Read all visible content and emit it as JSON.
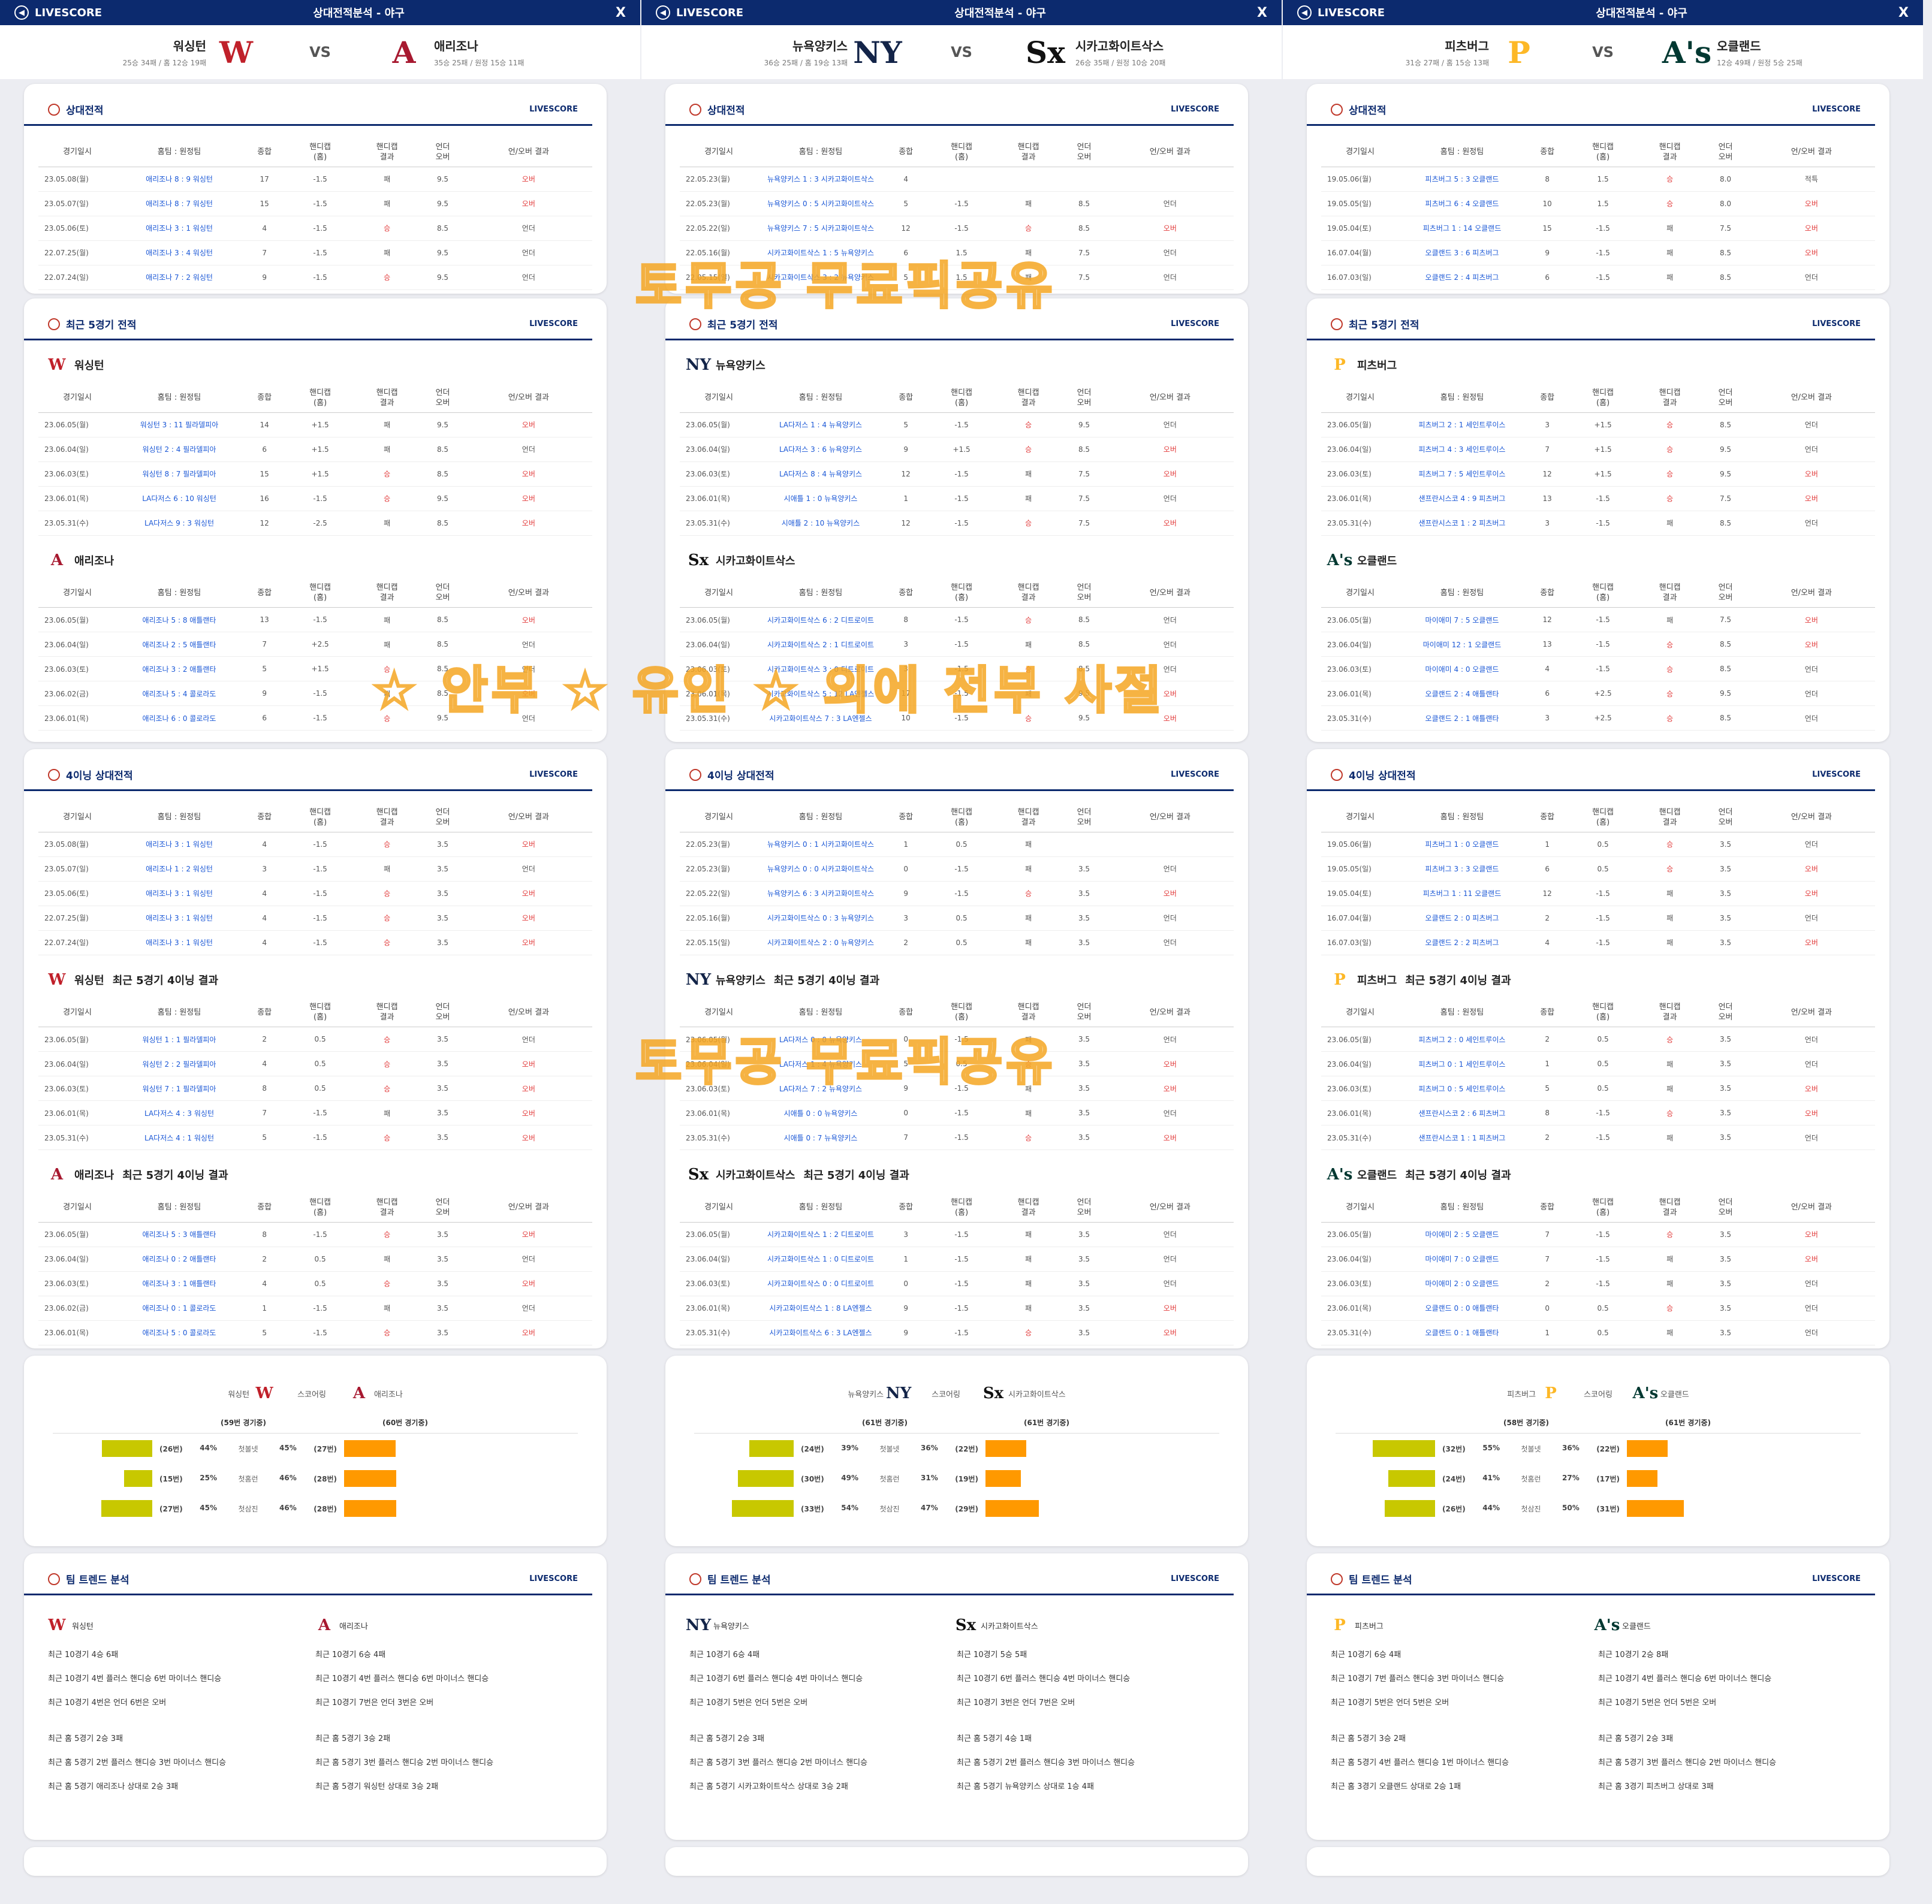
{
  "header": {
    "brand": "LIVESCORE",
    "title": "상대전적분석 - 야구",
    "close": "X"
  },
  "labels": {
    "vs": "VS",
    "h2h": "상대전적",
    "recent5": "최근 5경기 전적",
    "inning4": "4이닝 상대전적",
    "inning4suffix": " 최근 5경기 4이닝 결과",
    "trend": "팀 트렌드 분석",
    "livescore": "LIVESCORE",
    "scoring": "스코어링",
    "cols": [
      "경기일시",
      "홈팀 : 원정팀",
      "종합",
      "핸디캡\n(홈)",
      "핸디캡\n결과",
      "언더\n오버",
      "언/오버 결과"
    ],
    "stat_labels": [
      "첫볼넷",
      "첫홈런",
      "첫삼진"
    ]
  },
  "watermarks": [
    "토무공 무료픽공유",
    "☆ 안부 ☆ 유인 ☆ 외에 전부 사절",
    "토무공 무료픽공유"
  ],
  "games": [
    {
      "home": {
        "name": "워싱턴",
        "rec": "25승 34패 / 홈 12승 19패",
        "logo": "W",
        "color": "#c0202a"
      },
      "away": {
        "name": "애리조나",
        "rec": "35승 25패 / 원정 15승 11패",
        "logo": "A",
        "color": "#a71930"
      },
      "h2h": [
        [
          "23.05.08(월)",
          "애리조나 8 : 9 워싱턴",
          "17",
          "-1.5",
          "패",
          "9.5",
          "오버"
        ],
        [
          "23.05.07(일)",
          "애리조나 8 : 7 워싱턴",
          "15",
          "-1.5",
          "패",
          "9.5",
          "오버"
        ],
        [
          "23.05.06(토)",
          "애리조나 3 : 1 워싱턴",
          "4",
          "-1.5",
          "승",
          "8.5",
          "언더"
        ],
        [
          "22.07.25(월)",
          "애리조나 3 : 4 워싱턴",
          "7",
          "-1.5",
          "패",
          "9.5",
          "언더"
        ],
        [
          "22.07.24(일)",
          "애리조나 7 : 2 워싱턴",
          "9",
          "-1.5",
          "승",
          "9.5",
          "언더"
        ]
      ],
      "recent_home": [
        [
          "23.06.05(월)",
          "워싱턴 3 : 11 필라델피아",
          "14",
          "+1.5",
          "패",
          "9.5",
          "오버"
        ],
        [
          "23.06.04(일)",
          "워싱턴 2 : 4 필라델피아",
          "6",
          "+1.5",
          "패",
          "8.5",
          "언더"
        ],
        [
          "23.06.03(토)",
          "워싱턴 8 : 7 필라델피아",
          "15",
          "+1.5",
          "승",
          "8.5",
          "오버"
        ],
        [
          "23.06.01(목)",
          "LA다저스 6 : 10 워싱턴",
          "16",
          "-1.5",
          "승",
          "9.5",
          "오버"
        ],
        [
          "23.05.31(수)",
          "LA다저스 9 : 3 워싱턴",
          "12",
          "-2.5",
          "패",
          "8.5",
          "오버"
        ]
      ],
      "recent_away": [
        [
          "23.06.05(월)",
          "애리조나 5 : 8 애틀랜타",
          "13",
          "-1.5",
          "패",
          "8.5",
          "오버"
        ],
        [
          "23.06.04(일)",
          "애리조나 2 : 5 애틀랜타",
          "7",
          "+2.5",
          "패",
          "8.5",
          "언더"
        ],
        [
          "23.06.03(토)",
          "애리조나 3 : 2 애틀랜타",
          "5",
          "+1.5",
          "승",
          "8.5",
          "언더"
        ],
        [
          "23.06.02(금)",
          "애리조나 5 : 4 콜로라도",
          "9",
          "-1.5",
          "패",
          "8.5",
          "오버"
        ],
        [
          "23.06.01(목)",
          "애리조나 6 : 0 콜로라도",
          "6",
          "-1.5",
          "승",
          "9.5",
          "언더"
        ]
      ],
      "i4": [
        [
          "23.05.08(월)",
          "애리조나 3 : 1 워싱턴",
          "4",
          "-1.5",
          "승",
          "3.5",
          "오버"
        ],
        [
          "23.05.07(일)",
          "애리조나 1 : 2 워싱턴",
          "3",
          "-1.5",
          "패",
          "3.5",
          "언더"
        ],
        [
          "23.05.06(토)",
          "애리조나 3 : 1 워싱턴",
          "4",
          "-1.5",
          "승",
          "3.5",
          "오버"
        ],
        [
          "22.07.25(월)",
          "애리조나 3 : 1 워싱턴",
          "4",
          "-1.5",
          "승",
          "3.5",
          "오버"
        ],
        [
          "22.07.24(일)",
          "애리조나 3 : 1 워싱턴",
          "4",
          "-1.5",
          "승",
          "3.5",
          "오버"
        ]
      ],
      "i4_home": [
        [
          "23.06.05(월)",
          "워싱턴 1 : 1 필라델피아",
          "2",
          "0.5",
          "승",
          "3.5",
          "언더"
        ],
        [
          "23.06.04(일)",
          "워싱턴 2 : 2 필라델피아",
          "4",
          "0.5",
          "승",
          "3.5",
          "오버"
        ],
        [
          "23.06.03(토)",
          "워싱턴 7 : 1 필라델피아",
          "8",
          "0.5",
          "승",
          "3.5",
          "오버"
        ],
        [
          "23.06.01(목)",
          "LA다저스 4 : 3 워싱턴",
          "7",
          "-1.5",
          "패",
          "3.5",
          "오버"
        ],
        [
          "23.05.31(수)",
          "LA다저스 4 : 1 워싱턴",
          "5",
          "-1.5",
          "승",
          "3.5",
          "오버"
        ]
      ],
      "i4_away": [
        [
          "23.06.05(월)",
          "애리조나 5 : 3 애틀랜타",
          "8",
          "-1.5",
          "승",
          "3.5",
          "오버"
        ],
        [
          "23.06.04(일)",
          "애리조나 0 : 2 애틀랜타",
          "2",
          "0.5",
          "패",
          "3.5",
          "언더"
        ],
        [
          "23.06.03(토)",
          "애리조나 3 : 1 애틀랜타",
          "4",
          "0.5",
          "승",
          "3.5",
          "오버"
        ],
        [
          "23.06.02(금)",
          "애리조나 0 : 1 콜로라도",
          "1",
          "-1.5",
          "패",
          "3.5",
          "언더"
        ],
        [
          "23.06.01(목)",
          "애리조나 5 : 0 콜로라도",
          "5",
          "-1.5",
          "승",
          "3.5",
          "오버"
        ]
      ],
      "stats": {
        "home_games": "(59번 경기중)",
        "away_games": "(60번 경기중)",
        "rows": [
          [
            "(26번)",
            "44%",
            "45%",
            "(27번)",
            0.44,
            0.45
          ],
          [
            "(15번)",
            "25%",
            "46%",
            "(28번)",
            0.25,
            0.46
          ],
          [
            "(27번)",
            "45%",
            "46%",
            "(28번)",
            0.45,
            0.46
          ]
        ]
      },
      "trend_home": [
        "최근 10경기 4승 6패",
        "최근 10경기 4번 플러스 핸디승 6번 마이너스 핸디승",
        "최근 10경기 4번은 언더 6번은 오버",
        "최근 홈 5경기 2승 3패",
        "최근 홈 5경기 2번 플러스 핸디승 3번 마이너스 핸디승",
        "최근 홈 5경기 애리조나 상대로 2승 3패"
      ],
      "trend_away": [
        "최근 10경기 6승 4패",
        "최근 10경기 4번 플러스 핸디승 6번 마이너스 핸디승",
        "최근 10경기 7번은 언더 3번은 오버",
        "최근 홈 5경기 3승 2패",
        "최근 홈 5경기 3번 플러스 핸디승 2번 마이너스 핸디승",
        "최근 홈 5경기 워싱턴 상대로 3승 2패"
      ]
    },
    {
      "home": {
        "name": "뉴욕양키스",
        "rec": "36승 25패 / 홈 19승 13패",
        "logo": "NY",
        "color": "#132448"
      },
      "away": {
        "name": "시카고화이트삭스",
        "rec": "26승 35패 / 원정 10승 20패",
        "logo": "Sx",
        "color": "#111111"
      },
      "h2h": [
        [
          "22.05.23(월)",
          "뉴욕양키스 1 : 3 시카고화이트삭스",
          "4",
          "",
          "",
          "",
          ""
        ],
        [
          "22.05.23(월)",
          "뉴욕양키스 0 : 5 시카고화이트삭스",
          "5",
          "-1.5",
          "패",
          "8.5",
          "언더"
        ],
        [
          "22.05.22(일)",
          "뉴욕양키스 7 : 5 시카고화이트삭스",
          "12",
          "-1.5",
          "승",
          "8.5",
          "오버"
        ],
        [
          "22.05.16(월)",
          "시카고화이트삭스 1 : 5 뉴욕양키스",
          "6",
          "1.5",
          "패",
          "7.5",
          "언더"
        ],
        [
          "22.05.15(일)",
          "시카고화이트삭스 3 : 2 뉴욕양키스",
          "5",
          "1.5",
          "패",
          "7.5",
          "언더"
        ]
      ],
      "recent_home": [
        [
          "23.06.05(월)",
          "LA다저스 1 : 4 뉴욕양키스",
          "5",
          "-1.5",
          "승",
          "9.5",
          "언더"
        ],
        [
          "23.06.04(일)",
          "LA다저스 3 : 6 뉴욕양키스",
          "9",
          "+1.5",
          "승",
          "8.5",
          "오버"
        ],
        [
          "23.06.03(토)",
          "LA다저스 8 : 4 뉴욕양키스",
          "12",
          "-1.5",
          "패",
          "7.5",
          "오버"
        ],
        [
          "23.06.01(목)",
          "시애틀 1 : 0 뉴욕양키스",
          "1",
          "-1.5",
          "패",
          "7.5",
          "언더"
        ],
        [
          "23.05.31(수)",
          "시애틀 2 : 10 뉴욕양키스",
          "12",
          "-1.5",
          "승",
          "7.5",
          "오버"
        ]
      ],
      "recent_away": [
        [
          "23.06.05(월)",
          "시카고화이트삭스 6 : 2 디트로이트",
          "8",
          "-1.5",
          "승",
          "8.5",
          "언더"
        ],
        [
          "23.06.04(일)",
          "시카고화이트삭스 2 : 1 디트로이트",
          "3",
          "-1.5",
          "패",
          "8.5",
          "언더"
        ],
        [
          "23.06.03(토)",
          "시카고화이트삭스 3 : 0 디트로이트",
          "3",
          "-1.5",
          "승",
          "8.5",
          "언더"
        ],
        [
          "23.06.01(목)",
          "시카고화이트삭스 5 : 12 LA엔젤스",
          "17",
          "-1.5",
          "패",
          "9.5",
          "오버"
        ],
        [
          "23.05.31(수)",
          "시카고화이트삭스 7 : 3 LA엔젤스",
          "10",
          "-1.5",
          "승",
          "9.5",
          "오버"
        ]
      ],
      "i4": [
        [
          "22.05.23(월)",
          "뉴욕양키스 0 : 1 시카고화이트삭스",
          "1",
          "0.5",
          "패",
          "",
          ""
        ],
        [
          "22.05.23(월)",
          "뉴욕양키스 0 : 0 시카고화이트삭스",
          "0",
          "-1.5",
          "패",
          "3.5",
          "언더"
        ],
        [
          "22.05.22(일)",
          "뉴욕양키스 6 : 3 시카고화이트삭스",
          "9",
          "-1.5",
          "승",
          "3.5",
          "오버"
        ],
        [
          "22.05.16(월)",
          "시카고화이트삭스 0 : 3 뉴욕양키스",
          "3",
          "0.5",
          "패",
          "3.5",
          "언더"
        ],
        [
          "22.05.15(일)",
          "시카고화이트삭스 2 : 0 뉴욕양키스",
          "2",
          "0.5",
          "패",
          "3.5",
          "언더"
        ]
      ],
      "i4_home": [
        [
          "23.06.05(월)",
          "LA다저스 0 : 0 뉴욕양키스",
          "0",
          "-1.5",
          "패",
          "3.5",
          "언더"
        ],
        [
          "23.06.04(일)",
          "LA다저스 1 : 4 뉴욕양키스",
          "5",
          "0.5",
          "승",
          "3.5",
          "오버"
        ],
        [
          "23.06.03(토)",
          "LA다저스 7 : 2 뉴욕양키스",
          "9",
          "-1.5",
          "패",
          "3.5",
          "오버"
        ],
        [
          "23.06.01(목)",
          "시애틀 0 : 0 뉴욕양키스",
          "0",
          "-1.5",
          "패",
          "3.5",
          "언더"
        ],
        [
          "23.05.31(수)",
          "시애틀 0 : 7 뉴욕양키스",
          "7",
          "-1.5",
          "승",
          "3.5",
          "오버"
        ]
      ],
      "i4_away": [
        [
          "23.06.05(월)",
          "시카고화이트삭스 1 : 2 디트로이트",
          "3",
          "-1.5",
          "패",
          "3.5",
          "언더"
        ],
        [
          "23.06.04(일)",
          "시카고화이트삭스 1 : 0 디트로이트",
          "1",
          "-1.5",
          "패",
          "3.5",
          "언더"
        ],
        [
          "23.06.03(토)",
          "시카고화이트삭스 0 : 0 디트로이트",
          "0",
          "-1.5",
          "패",
          "3.5",
          "언더"
        ],
        [
          "23.06.01(목)",
          "시카고화이트삭스 1 : 8 LA엔젤스",
          "9",
          "-1.5",
          "패",
          "3.5",
          "오버"
        ],
        [
          "23.05.31(수)",
          "시카고화이트삭스 6 : 3 LA엔젤스",
          "9",
          "-1.5",
          "승",
          "3.5",
          "오버"
        ]
      ],
      "stats": {
        "home_games": "(61번 경기중)",
        "away_games": "(61번 경기중)",
        "rows": [
          [
            "(24번)",
            "39%",
            "36%",
            "(22번)",
            0.39,
            0.36
          ],
          [
            "(30번)",
            "49%",
            "31%",
            "(19번)",
            0.49,
            0.31
          ],
          [
            "(33번)",
            "54%",
            "47%",
            "(29번)",
            0.54,
            0.47
          ]
        ]
      },
      "trend_home": [
        "최근 10경기 6승 4패",
        "최근 10경기 6번 플러스 핸디승 4번 마이너스 핸디승",
        "최근 10경기 5번은 언더 5번은 오버",
        "최근 홈 5경기 2승 3패",
        "최근 홈 5경기 3번 플러스 핸디승 2번 마이너스 핸디승",
        "최근 홈 5경기 시카고화이트삭스 상대로 3승 2패"
      ],
      "trend_away": [
        "최근 10경기 5승 5패",
        "최근 10경기 6번 플러스 핸디승 4번 마이너스 핸디승",
        "최근 10경기 3번은 언더 7번은 오버",
        "최근 홈 5경기 4승 1패",
        "최근 홈 5경기 2번 플러스 핸디승 3번 마이너스 핸디승",
        "최근 홈 5경기 뉴욕양키스 상대로 1승 4패"
      ]
    },
    {
      "home": {
        "name": "피츠버그",
        "rec": "31승 27패 / 홈 15승 13패",
        "logo": "P",
        "color": "#fdb827"
      },
      "away": {
        "name": "오클랜드",
        "rec": "12승 49패 / 원정 5승 25패",
        "logo": "A's",
        "color": "#003831"
      },
      "h2h": [
        [
          "19.05.06(월)",
          "피츠버그 5 : 3 오클랜드",
          "8",
          "1.5",
          "승",
          "8.0",
          "적특"
        ],
        [
          "19.05.05(일)",
          "피츠버그 6 : 4 오클랜드",
          "10",
          "1.5",
          "승",
          "8.0",
          "오버"
        ],
        [
          "19.05.04(토)",
          "피츠버그 1 : 14 오클랜드",
          "15",
          "-1.5",
          "패",
          "7.5",
          "오버"
        ],
        [
          "16.07.04(월)",
          "오클랜드 3 : 6 피츠버그",
          "9",
          "-1.5",
          "패",
          "8.5",
          "오버"
        ],
        [
          "16.07.03(일)",
          "오클랜드 2 : 4 피츠버그",
          "6",
          "-1.5",
          "패",
          "8.5",
          "언더"
        ]
      ],
      "recent_home": [
        [
          "23.06.05(월)",
          "피츠버그 2 : 1 세인트루이스",
          "3",
          "+1.5",
          "승",
          "8.5",
          "언더"
        ],
        [
          "23.06.04(일)",
          "피츠버그 4 : 3 세인트루이스",
          "7",
          "+1.5",
          "승",
          "9.5",
          "언더"
        ],
        [
          "23.06.03(토)",
          "피츠버그 7 : 5 세인트루이스",
          "12",
          "+1.5",
          "승",
          "9.5",
          "오버"
        ],
        [
          "23.06.01(목)",
          "샌프란시스코 4 : 9 피츠버그",
          "13",
          "-1.5",
          "승",
          "7.5",
          "오버"
        ],
        [
          "23.05.31(수)",
          "샌프란시스코 1 : 2 피츠버그",
          "3",
          "-1.5",
          "패",
          "8.5",
          "언더"
        ]
      ],
      "recent_away": [
        [
          "23.06.05(월)",
          "마이애미 7 : 5 오클랜드",
          "12",
          "-1.5",
          "패",
          "7.5",
          "오버"
        ],
        [
          "23.06.04(일)",
          "마이애미 12 : 1 오클랜드",
          "13",
          "-1.5",
          "승",
          "8.5",
          "오버"
        ],
        [
          "23.06.03(토)",
          "마이애미 4 : 0 오클랜드",
          "4",
          "-1.5",
          "승",
          "8.5",
          "언더"
        ],
        [
          "23.06.01(목)",
          "오클랜드 2 : 4 애틀랜타",
          "6",
          "+2.5",
          "승",
          "9.5",
          "언더"
        ],
        [
          "23.05.31(수)",
          "오클랜드 2 : 1 애틀랜타",
          "3",
          "+2.5",
          "승",
          "8.5",
          "언더"
        ]
      ],
      "i4": [
        [
          "19.05.06(월)",
          "피츠버그 1 : 0 오클랜드",
          "1",
          "0.5",
          "승",
          "3.5",
          "언더"
        ],
        [
          "19.05.05(일)",
          "피츠버그 3 : 3 오클랜드",
          "6",
          "0.5",
          "승",
          "3.5",
          "오버"
        ],
        [
          "19.05.04(토)",
          "피츠버그 1 : 11 오클랜드",
          "12",
          "-1.5",
          "패",
          "3.5",
          "오버"
        ],
        [
          "16.07.04(월)",
          "오클랜드 2 : 0 피츠버그",
          "2",
          "-1.5",
          "패",
          "3.5",
          "언더"
        ],
        [
          "16.07.03(일)",
          "오클랜드 2 : 2 피츠버그",
          "4",
          "-1.5",
          "패",
          "3.5",
          "오버"
        ]
      ],
      "i4_home": [
        [
          "23.06.05(월)",
          "피츠버그 2 : 0 세인트루이스",
          "2",
          "0.5",
          "승",
          "3.5",
          "언더"
        ],
        [
          "23.06.04(일)",
          "피츠버그 0 : 1 세인트루이스",
          "1",
          "0.5",
          "패",
          "3.5",
          "언더"
        ],
        [
          "23.06.03(토)",
          "피츠버그 0 : 5 세인트루이스",
          "5",
          "0.5",
          "패",
          "3.5",
          "오버"
        ],
        [
          "23.06.01(목)",
          "샌프란시스코 2 : 6 피츠버그",
          "8",
          "-1.5",
          "승",
          "3.5",
          "오버"
        ],
        [
          "23.05.31(수)",
          "샌프란시스코 1 : 1 피츠버그",
          "2",
          "-1.5",
          "패",
          "3.5",
          "언더"
        ]
      ],
      "i4_away": [
        [
          "23.06.05(월)",
          "마이애미 2 : 5 오클랜드",
          "7",
          "-1.5",
          "승",
          "3.5",
          "오버"
        ],
        [
          "23.06.04(일)",
          "마이애미 7 : 0 오클랜드",
          "7",
          "-1.5",
          "패",
          "3.5",
          "오버"
        ],
        [
          "23.06.03(토)",
          "마이애미 2 : 0 오클랜드",
          "2",
          "-1.5",
          "패",
          "3.5",
          "언더"
        ],
        [
          "23.06.01(목)",
          "오클랜드 0 : 0 애틀랜타",
          "0",
          "0.5",
          "승",
          "3.5",
          "언더"
        ],
        [
          "23.05.31(수)",
          "오클랜드 0 : 1 애틀랜타",
          "1",
          "0.5",
          "패",
          "3.5",
          "언더"
        ]
      ],
      "stats": {
        "home_games": "(58번 경기중)",
        "away_games": "(61번 경기중)",
        "rows": [
          [
            "(32번)",
            "55%",
            "36%",
            "(22번)",
            0.55,
            0.36
          ],
          [
            "(24번)",
            "41%",
            "27%",
            "(17번)",
            0.41,
            0.27
          ],
          [
            "(26번)",
            "44%",
            "50%",
            "(31번)",
            0.44,
            0.5
          ]
        ]
      },
      "trend_home": [
        "최근 10경기 6승 4패",
        "최근 10경기 7번 플러스 핸디승 3번 마이너스 핸디승",
        "최근 10경기 5번은 언더 5번은 오버",
        "최근 홈 5경기 3승 2패",
        "최근 홈 5경기 4번 플러스 핸디승 1번 마이너스 핸디승",
        "최근 홈 3경기 오클랜드 상대로 2승 1패"
      ],
      "trend_away": [
        "최근 10경기 2승 8패",
        "최근 10경기 4번 플러스 핸디승 6번 마이너스 핸디승",
        "최근 10경기 5번은 언더 5번은 오버",
        "최근 홈 5경기 2승 3패",
        "최근 홈 5경기 3번 플러스 핸디승 2번 마이너스 핸디승",
        "최근 홈 3경기 피츠버그 상대로 3패"
      ]
    }
  ]
}
